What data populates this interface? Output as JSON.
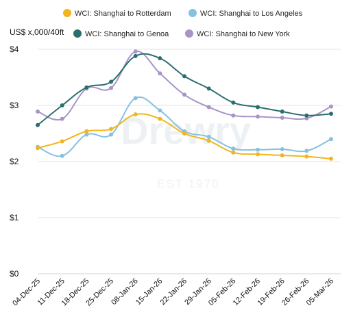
{
  "chart_data": {
    "type": "line",
    "ylabel": "US$ x,000/40ft",
    "ylim": [
      0,
      4
    ],
    "yticks": [
      0,
      1,
      2,
      3,
      4
    ],
    "ytick_labels": [
      "$0",
      "$1",
      "$2",
      "$3",
      "$4"
    ],
    "grid": true,
    "legend_position": "top",
    "categories": [
      "04-Dec-25",
      "11-Dec-25",
      "18-Dec-25",
      "25-Dec-25",
      "08-Jan-26",
      "15-Jan-26",
      "22-Jan-26",
      "29-Jan-26",
      "05-Feb-26",
      "12-Feb-26",
      "19-Feb-26",
      "26-Feb-26",
      "05-Mar-26"
    ],
    "series": [
      {
        "name": "WCI: Shanghai to Rotterdam",
        "color": "#f2b51b",
        "values": [
          2.24,
          2.36,
          2.54,
          2.58,
          2.84,
          2.76,
          2.5,
          2.37,
          2.16,
          2.13,
          2.11,
          2.09,
          2.05
        ]
      },
      {
        "name": "WCI: Shanghai to Los Angeles",
        "color": "#85c1e0",
        "values": [
          2.26,
          2.1,
          2.48,
          2.48,
          3.13,
          2.91,
          2.54,
          2.44,
          2.23,
          2.21,
          2.22,
          2.19,
          2.4
        ]
      },
      {
        "name": "WCI: Shanghai to Genoa",
        "color": "#2b6e6e",
        "values": [
          2.65,
          3.0,
          3.32,
          3.42,
          3.88,
          3.84,
          3.52,
          3.3,
          3.05,
          2.97,
          2.89,
          2.82,
          2.85
        ]
      },
      {
        "name": "WCI: Shanghai to New York",
        "color": "#a894c8",
        "values": [
          2.89,
          2.76,
          3.3,
          3.31,
          3.96,
          3.57,
          3.19,
          2.97,
          2.82,
          2.8,
          2.78,
          2.77,
          2.98
        ]
      }
    ],
    "watermark": {
      "text": "Drewry",
      "subtext": "EST 1970"
    }
  }
}
